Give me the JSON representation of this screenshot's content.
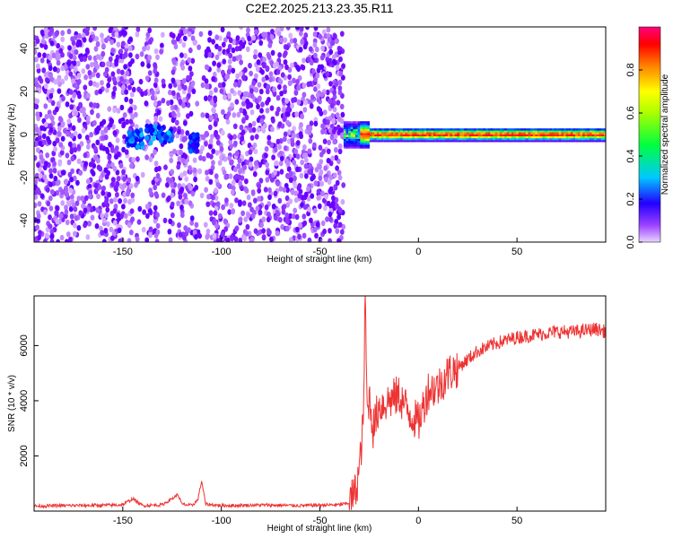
{
  "figure_title": "C2E2.2025.213.23.35.R11",
  "chart_data": [
    {
      "type": "heatmap",
      "title": "C2E2.2025.213.23.35.R11",
      "xlabel": "Height of straight line (km)",
      "ylabel": "Frequency (Hz)",
      "xlim": [
        -195,
        95
      ],
      "ylim": [
        -50,
        50
      ],
      "x_ticks": [
        -150,
        -100,
        -50,
        0,
        50
      ],
      "y_ticks": [
        -40,
        -20,
        0,
        20,
        40
      ],
      "colorbar": {
        "label": "Normalized spectral amplitude",
        "range": [
          0,
          1
        ],
        "ticks": [
          0.0,
          0.2,
          0.4,
          0.6,
          0.8
        ],
        "colormap": [
          "#d9b3ff",
          "#6f00ff",
          "#0000ff",
          "#00c8ff",
          "#00ff40",
          "#ffff00",
          "#ff8000",
          "#ff0000",
          "#ff0080"
        ]
      },
      "regions": [
        {
          "x_range": [
            -195,
            -38
          ],
          "description_value": "scattered low amplitude",
          "amplitude_range": [
            0.0,
            0.15
          ]
        },
        {
          "x_range": [
            -148,
            -140
          ],
          "freq_center": -2,
          "amplitude": 0.35
        },
        {
          "x_range": [
            -138,
            -125
          ],
          "freq_center": 0,
          "amplitude": 0.35
        },
        {
          "x_range": [
            -116,
            -112
          ],
          "freq_center": -4,
          "amplitude": 0.3
        },
        {
          "x_range": [
            -38,
            95
          ],
          "freq_center": 0,
          "freq_halfwidth": 3,
          "amplitude": 0.95
        }
      ]
    },
    {
      "type": "line",
      "xlabel": "Height of straight line (km)",
      "ylabel": "SNR (10 * v/v)",
      "xlim": [
        -195,
        95
      ],
      "ylim": [
        0,
        7800
      ],
      "x_ticks": [
        -150,
        -100,
        -50,
        0,
        50
      ],
      "y_ticks": [
        2000,
        4000,
        6000
      ],
      "color": "#ee3333",
      "series": [
        {
          "x": [
            -195,
            -180,
            -160,
            -150,
            -145,
            -140,
            -130,
            -125,
            -122,
            -120,
            -115,
            -112,
            -110,
            -108,
            -100,
            -80,
            -60,
            -40,
            -35,
            -32,
            -30,
            -28,
            -27,
            -26,
            -25,
            -23,
            -20,
            -15,
            -10,
            -5,
            0,
            5,
            10,
            15,
            20,
            25,
            30,
            40,
            50,
            60,
            70,
            80,
            90,
            95
          ],
          "y": [
            180,
            200,
            210,
            230,
            450,
            200,
            230,
            450,
            600,
            250,
            200,
            400,
            1100,
            250,
            200,
            220,
            200,
            230,
            300,
            700,
            1500,
            3200,
            7800,
            3500,
            4200,
            3000,
            3800,
            4000,
            4200,
            3600,
            3200,
            4400,
            4500,
            5000,
            5200,
            5500,
            5800,
            6100,
            6300,
            6400,
            6500,
            6500,
            6600,
            6500
          ]
        }
      ]
    }
  ]
}
